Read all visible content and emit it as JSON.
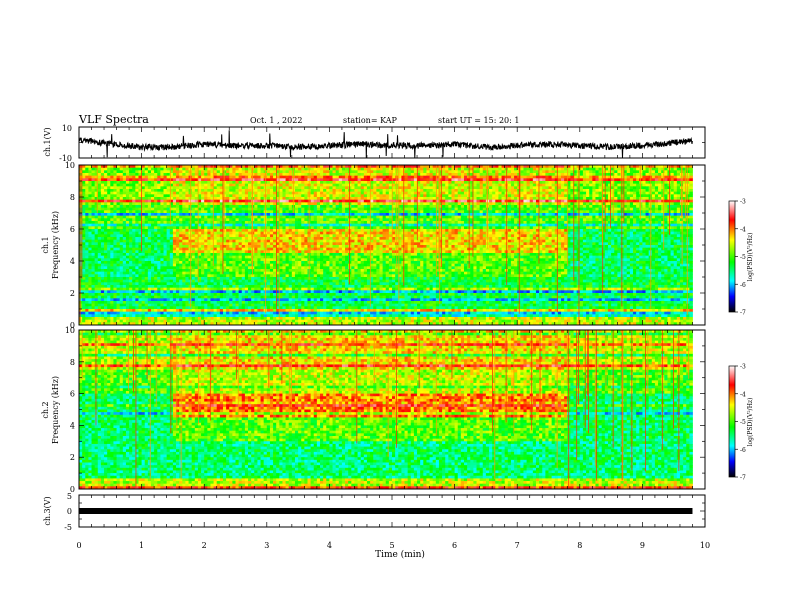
{
  "header": {
    "title": "VLF Spectra",
    "date": "Oct. 1 , 2022",
    "station": "station= KAP",
    "start": "start UT =  15: 20: 1"
  },
  "colorbar": {
    "label": "log(PSD)(V²/Hz)",
    "ticks": [
      "-3",
      "-4",
      "-5",
      "-6",
      "-7"
    ],
    "colors": [
      "#ffffff",
      "#ff0000",
      "#ffff00",
      "#00ff00",
      "#00ffff",
      "#0000ff",
      "#000000"
    ]
  },
  "chart_data": [
    {
      "type": "line",
      "name": "ch1-waveform",
      "ylabel": "ch.1(V)",
      "ylim": [
        -10,
        10
      ],
      "yticks": [
        "10",
        "-10"
      ],
      "xlim": [
        0,
        10
      ],
      "x": [
        0,
        0.5,
        1,
        1.5,
        2,
        2.5,
        3,
        3.5,
        4,
        4.5,
        5,
        5.5,
        6,
        6.5,
        7,
        7.5,
        8,
        8.5,
        9,
        9.5,
        9.8
      ],
      "y": [
        2,
        -1,
        -3,
        -3,
        -1,
        -2,
        -2,
        -3,
        -2,
        -1,
        -2,
        -2,
        -1,
        -3,
        -2,
        -1,
        -2,
        -3,
        -2,
        0,
        1
      ]
    },
    {
      "type": "heatmap",
      "name": "ch1-spectrogram",
      "ylabel_top": "ch.1",
      "ylabel": "Frequency (kHz)",
      "ylim": [
        0,
        10
      ],
      "yticks": [
        "0",
        "2",
        "4",
        "6",
        "8",
        "10"
      ],
      "xlim": [
        0,
        10
      ],
      "x_extent": [
        0,
        9.8
      ],
      "zlim": [
        -7,
        -3
      ],
      "time_segments": [
        {
          "start": 0,
          "end": 1.5,
          "mode": "quiet"
        },
        {
          "start": 1.5,
          "end": 7.8,
          "mode": "active"
        },
        {
          "start": 7.8,
          "end": 9.8,
          "mode": "quiet"
        }
      ]
    },
    {
      "type": "heatmap",
      "name": "ch2-spectrogram",
      "ylabel_top": "ch.2",
      "ylabel": "Frequency (kHz)",
      "ylim": [
        0,
        10
      ],
      "yticks": [
        "0",
        "2",
        "4",
        "6",
        "8",
        "10"
      ],
      "xlim": [
        0,
        10
      ],
      "x_extent": [
        0,
        9.8
      ],
      "zlim": [
        -7,
        -3
      ],
      "time_segments": [
        {
          "start": 0,
          "end": 1.5,
          "mode": "quiet"
        },
        {
          "start": 1.5,
          "end": 7.8,
          "mode": "active"
        },
        {
          "start": 7.8,
          "end": 9.8,
          "mode": "quiet"
        }
      ]
    },
    {
      "type": "line",
      "name": "ch3-signal",
      "ylabel": "ch.3(V)",
      "ylim": [
        -5,
        5
      ],
      "yticks": [
        "5",
        "0",
        "-5"
      ],
      "xlim": [
        0,
        10
      ],
      "x": [
        0,
        9.8
      ],
      "y": [
        0,
        0
      ],
      "xlabel": "Time (min)",
      "xticks": [
        "0",
        "1",
        "2",
        "3",
        "4",
        "5",
        "6",
        "7",
        "8",
        "9",
        "10"
      ]
    }
  ]
}
